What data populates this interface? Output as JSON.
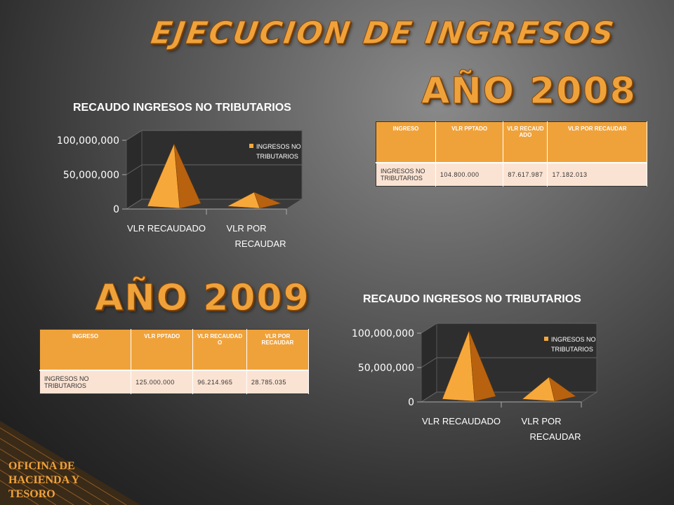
{
  "slide": {
    "title": "EJECUCION DE INGRESOS",
    "year_2008": "AÑO 2008",
    "year_2009": "AÑO 2009",
    "footer": "OFICINA DE HACIENDA  Y TESORO"
  },
  "colors": {
    "accent": "#f0a23a",
    "table_row": "#fbe3d3",
    "pyramid_light": "#f7a83a",
    "pyramid_dark": "#b8620f"
  },
  "tables": {
    "t2008": {
      "headers": [
        "INGRESO",
        "VLR PPTADO",
        "VLR RECAUDADO",
        "VLR POR RECAUDAR"
      ],
      "row": [
        "INGRESOS NO TRIBUTARIOS",
        "104.800.000",
        "87.617.987",
        "17.182.013"
      ]
    },
    "t2009": {
      "headers": [
        "INGRESO",
        "VLR PPTADO",
        "VLR RECAUDADO",
        "VLR POR RECAUDAR"
      ],
      "row": [
        "INGRESOS NO TRIBUTARIOS",
        "125.000.000",
        "96.214.965",
        "28.785.035"
      ]
    }
  },
  "chart_data": [
    {
      "type": "bar",
      "title": "RECAUDO INGRESOS NO TRIBUTARIOS",
      "categories": [
        "VLR RECAUDADO",
        "VLR POR RECAUDAR"
      ],
      "series": [
        {
          "name": "INGRESOS NO TRIBUTARIOS",
          "values": [
            87617987,
            17182013
          ]
        }
      ],
      "yticks": [
        "0",
        "50,000,000",
        "100,000,000"
      ],
      "ylim": [
        0,
        100000000
      ],
      "legend": "top-right",
      "shape": "3d-pyramid"
    },
    {
      "type": "bar",
      "title": "RECAUDO INGRESOS NO TRIBUTARIOS",
      "categories": [
        "VLR RECAUDADO",
        "VLR POR RECAUDAR"
      ],
      "series": [
        {
          "name": "INGRESOS NO TRIBUTARIOS",
          "values": [
            96214965,
            28785035
          ]
        }
      ],
      "yticks": [
        "0",
        "50,000,000",
        "100,000,000"
      ],
      "ylim": [
        0,
        100000000
      ],
      "legend": "top-right",
      "shape": "3d-pyramid"
    }
  ]
}
